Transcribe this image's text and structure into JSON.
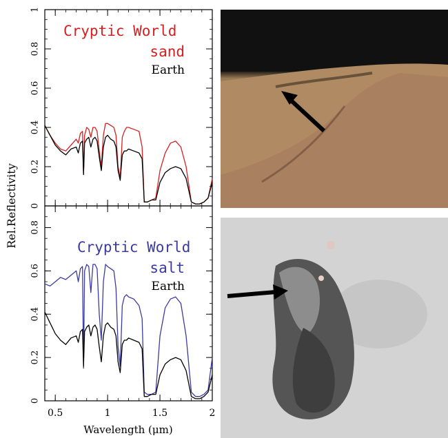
{
  "chart_data": [
    {
      "type": "line",
      "title": "Cryptic World sand",
      "legend": [
        "Cryptic World",
        "sand",
        "Earth"
      ],
      "colors": {
        "cryptic": "#d42020",
        "earth": "#000000"
      },
      "ylabel": "Rel.Reflectivity",
      "xlabel": "",
      "xlim": [
        0.4,
        2.0
      ],
      "ylim": [
        0,
        1
      ],
      "yticks": [
        "0",
        "0.2",
        "0.4",
        "0.6",
        "0.8",
        "1"
      ],
      "series": [
        {
          "name": "Cryptic World sand",
          "x": [
            0.4,
            0.45,
            0.5,
            0.55,
            0.6,
            0.65,
            0.7,
            0.72,
            0.74,
            0.76,
            0.77,
            0.78,
            0.8,
            0.82,
            0.84,
            0.86,
            0.88,
            0.9,
            0.92,
            0.94,
            0.96,
            0.98,
            1.0,
            1.03,
            1.06,
            1.08,
            1.1,
            1.12,
            1.14,
            1.16,
            1.18,
            1.2,
            1.25,
            1.3,
            1.33,
            1.35,
            1.38,
            1.42,
            1.46,
            1.5,
            1.55,
            1.6,
            1.65,
            1.7,
            1.75,
            1.8,
            1.84,
            1.88,
            1.92,
            1.96,
            2.0
          ],
          "y": [
            0.41,
            0.36,
            0.32,
            0.29,
            0.28,
            0.31,
            0.34,
            0.32,
            0.37,
            0.38,
            0.16,
            0.36,
            0.4,
            0.39,
            0.35,
            0.4,
            0.4,
            0.38,
            0.28,
            0.2,
            0.36,
            0.42,
            0.42,
            0.41,
            0.4,
            0.36,
            0.2,
            0.14,
            0.35,
            0.38,
            0.4,
            0.4,
            0.39,
            0.38,
            0.3,
            0.02,
            0.02,
            0.03,
            0.04,
            0.18,
            0.27,
            0.32,
            0.33,
            0.3,
            0.2,
            0.02,
            0.01,
            0.01,
            0.02,
            0.04,
            0.14
          ]
        },
        {
          "name": "Earth",
          "x": [
            0.4,
            0.45,
            0.5,
            0.55,
            0.6,
            0.65,
            0.7,
            0.72,
            0.74,
            0.76,
            0.77,
            0.78,
            0.8,
            0.82,
            0.84,
            0.86,
            0.88,
            0.9,
            0.92,
            0.94,
            0.96,
            0.98,
            1.0,
            1.03,
            1.06,
            1.08,
            1.1,
            1.12,
            1.14,
            1.16,
            1.18,
            1.2,
            1.25,
            1.3,
            1.33,
            1.35,
            1.38,
            1.42,
            1.46,
            1.5,
            1.55,
            1.6,
            1.65,
            1.7,
            1.75,
            1.8,
            1.84,
            1.88,
            1.92,
            1.96,
            2.0
          ],
          "y": [
            0.41,
            0.36,
            0.31,
            0.28,
            0.26,
            0.29,
            0.3,
            0.27,
            0.32,
            0.33,
            0.16,
            0.32,
            0.34,
            0.35,
            0.3,
            0.34,
            0.35,
            0.33,
            0.25,
            0.18,
            0.3,
            0.35,
            0.36,
            0.34,
            0.33,
            0.3,
            0.18,
            0.13,
            0.26,
            0.28,
            0.28,
            0.29,
            0.28,
            0.27,
            0.24,
            0.02,
            0.02,
            0.03,
            0.03,
            0.12,
            0.17,
            0.19,
            0.2,
            0.19,
            0.14,
            0.02,
            0.01,
            0.01,
            0.02,
            0.04,
            0.12
          ]
        }
      ]
    },
    {
      "type": "line",
      "title": "Cryptic World salt",
      "legend": [
        "Cryptic World",
        "salt",
        "Earth"
      ],
      "colors": {
        "cryptic": "#3a3aa0",
        "earth": "#000000"
      },
      "ylabel": "Rel.Reflectivity",
      "xlabel": "Wavelength (μm)",
      "xlim": [
        0.4,
        2.0
      ],
      "ylim": [
        0,
        0.9
      ],
      "xticks": [
        "0.5",
        "1",
        "1.5",
        "2"
      ],
      "yticks": [
        "0",
        "0.2",
        "0.4",
        "0.6",
        "0.8"
      ],
      "series": [
        {
          "name": "Cryptic World salt",
          "x": [
            0.4,
            0.45,
            0.5,
            0.55,
            0.6,
            0.65,
            0.7,
            0.72,
            0.74,
            0.76,
            0.77,
            0.78,
            0.8,
            0.82,
            0.84,
            0.86,
            0.88,
            0.9,
            0.92,
            0.94,
            0.96,
            0.98,
            1.0,
            1.03,
            1.06,
            1.08,
            1.1,
            1.12,
            1.14,
            1.16,
            1.18,
            1.2,
            1.25,
            1.3,
            1.33,
            1.35,
            1.38,
            1.42,
            1.46,
            1.5,
            1.55,
            1.6,
            1.65,
            1.7,
            1.75,
            1.8,
            1.84,
            1.88,
            1.92,
            1.96,
            2.0
          ],
          "y": [
            0.54,
            0.53,
            0.55,
            0.57,
            0.56,
            0.58,
            0.6,
            0.55,
            0.61,
            0.62,
            0.15,
            0.6,
            0.63,
            0.62,
            0.5,
            0.63,
            0.63,
            0.61,
            0.4,
            0.28,
            0.55,
            0.63,
            0.62,
            0.61,
            0.6,
            0.52,
            0.25,
            0.16,
            0.44,
            0.48,
            0.49,
            0.48,
            0.47,
            0.44,
            0.38,
            0.04,
            0.03,
            0.03,
            0.04,
            0.3,
            0.43,
            0.47,
            0.48,
            0.45,
            0.3,
            0.04,
            0.02,
            0.02,
            0.03,
            0.05,
            0.2
          ]
        },
        {
          "name": "Earth",
          "x": [
            0.4,
            0.45,
            0.5,
            0.55,
            0.6,
            0.65,
            0.7,
            0.72,
            0.74,
            0.76,
            0.77,
            0.78,
            0.8,
            0.82,
            0.84,
            0.86,
            0.88,
            0.9,
            0.92,
            0.94,
            0.96,
            0.98,
            1.0,
            1.03,
            1.06,
            1.08,
            1.1,
            1.12,
            1.14,
            1.16,
            1.18,
            1.2,
            1.25,
            1.3,
            1.33,
            1.35,
            1.38,
            1.42,
            1.46,
            1.5,
            1.55,
            1.6,
            1.65,
            1.7,
            1.75,
            1.8,
            1.84,
            1.88,
            1.92,
            1.96,
            2.0
          ],
          "y": [
            0.41,
            0.36,
            0.31,
            0.28,
            0.26,
            0.29,
            0.3,
            0.27,
            0.32,
            0.33,
            0.16,
            0.32,
            0.34,
            0.35,
            0.3,
            0.34,
            0.35,
            0.33,
            0.25,
            0.18,
            0.3,
            0.35,
            0.36,
            0.34,
            0.33,
            0.3,
            0.18,
            0.13,
            0.26,
            0.28,
            0.28,
            0.29,
            0.28,
            0.27,
            0.24,
            0.02,
            0.02,
            0.03,
            0.03,
            0.12,
            0.17,
            0.19,
            0.2,
            0.19,
            0.14,
            0.02,
            0.01,
            0.01,
            0.02,
            0.04,
            0.12
          ]
        }
      ]
    }
  ],
  "photos": {
    "sand": {
      "description_icon": "sand-crust-photo-with-arrow"
    },
    "salt": {
      "description_icon": "salt-crust-photo-with-arrow"
    }
  }
}
